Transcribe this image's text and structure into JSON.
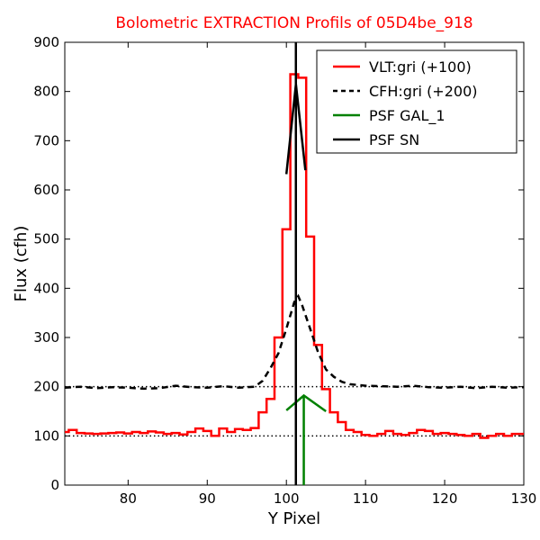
{
  "chart_data": {
    "type": "line",
    "title": "Bolometric EXTRACTION Profils of 05D4be_918",
    "title_color": "#ff0000",
    "xlabel": "Y Pixel",
    "ylabel": "Flux (cfh)",
    "xlim": [
      72,
      130
    ],
    "ylim": [
      0,
      900
    ],
    "xticks": [
      80,
      90,
      100,
      110,
      120,
      130
    ],
    "yticks": [
      0,
      100,
      200,
      300,
      400,
      500,
      600,
      700,
      800,
      900
    ],
    "legend_position": "top-right",
    "reference_lines": [
      {
        "y": 200,
        "style": "dotted",
        "color": "#000000"
      },
      {
        "y": 100,
        "style": "dotted",
        "color": "#000000"
      }
    ],
    "vertical_markers": [
      {
        "x": 101.2,
        "color": "#000000"
      },
      {
        "x": 102.2,
        "color": "#008000",
        "y_top": 180
      }
    ],
    "series": [
      {
        "name": "VLT:gri (+100)",
        "color": "#ff0000",
        "style": "steps",
        "x": [
          72,
          73,
          74,
          75,
          76,
          77,
          78,
          79,
          80,
          81,
          82,
          83,
          84,
          85,
          86,
          87,
          88,
          89,
          90,
          91,
          92,
          93,
          94,
          95,
          96,
          97,
          98,
          99,
          100,
          101,
          102,
          103,
          104,
          105,
          106,
          107,
          108,
          109,
          110,
          111,
          112,
          113,
          114,
          115,
          116,
          117,
          118,
          119,
          120,
          121,
          122,
          123,
          124,
          125,
          126,
          127,
          128,
          129,
          130
        ],
        "values": [
          108,
          112,
          106,
          105,
          104,
          105,
          106,
          107,
          105,
          108,
          106,
          109,
          107,
          104,
          106,
          103,
          108,
          115,
          110,
          100,
          115,
          108,
          114,
          112,
          116,
          148,
          175,
          300,
          520,
          835,
          828,
          505,
          285,
          195,
          148,
          128,
          112,
          108,
          102,
          100,
          104,
          110,
          104,
          102,
          106,
          112,
          110,
          104,
          106,
          104,
          102,
          100,
          104,
          96,
          100,
          104,
          100,
          104,
          104
        ]
      },
      {
        "name": "CFH:gri (+200)",
        "color": "#000000",
        "style": "dashed",
        "x": [
          72,
          74,
          76,
          78,
          80,
          82,
          84,
          86,
          88,
          90,
          92,
          94,
          96,
          97,
          98,
          99,
          100,
          101,
          101.5,
          102,
          103,
          104,
          105,
          106,
          107,
          108,
          110,
          112,
          114,
          116,
          118,
          120,
          122,
          124,
          126,
          128,
          130
        ],
        "values": [
          198,
          200,
          197,
          199,
          198,
          196,
          197,
          202,
          199,
          198,
          201,
          198,
          200,
          212,
          238,
          268,
          318,
          372,
          384,
          365,
          318,
          270,
          235,
          220,
          210,
          205,
          202,
          201,
          200,
          202,
          199,
          198,
          200,
          197,
          200,
          198,
          199
        ]
      },
      {
        "name": "PSF GAL_1",
        "color": "#008000",
        "style": "solid",
        "x": [
          100,
          102.2,
          105
        ],
        "values": [
          152,
          182,
          150
        ]
      },
      {
        "name": "PSF SN",
        "color": "#000000",
        "style": "solid",
        "x": [
          100,
          101.2,
          102.4
        ],
        "values": [
          632,
          815,
          640
        ]
      }
    ]
  }
}
